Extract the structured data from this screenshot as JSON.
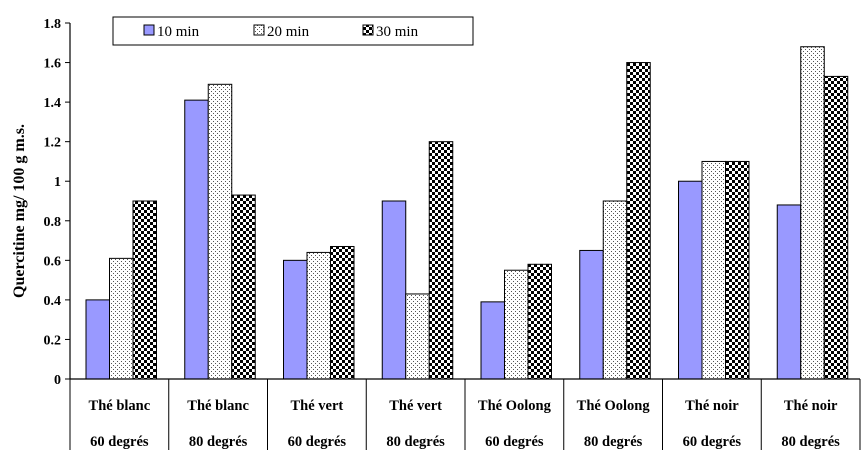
{
  "chart_data": {
    "type": "bar",
    "title": "",
    "xlabel": "",
    "ylabel": "Quercitine mg/ 100 g m.s.",
    "ylim": [
      0,
      1.8
    ],
    "yticks": [
      "0",
      "0.2",
      "0.4",
      "0.6",
      "0.8",
      "1",
      "1.2",
      "1.4",
      "1.6",
      "1.8"
    ],
    "grid": false,
    "legend_position": "top-left",
    "categories": [
      {
        "line1": "Thé blanc",
        "line2": "60 degrés"
      },
      {
        "line1": "Thé blanc",
        "line2": "80 degrés"
      },
      {
        "line1": "Thé vert",
        "line2": "60 degrés"
      },
      {
        "line1": "Thé vert",
        "line2": "80 degrés"
      },
      {
        "line1": "Thé Oolong",
        "line2": "60 degrés"
      },
      {
        "line1": "Thé Oolong",
        "line2": "80 degrés"
      },
      {
        "line1": "Thé noir",
        "line2": "60 degrés"
      },
      {
        "line1": "Thé noir",
        "line2": "80 degrés"
      }
    ],
    "series": [
      {
        "name": "10 min",
        "values": [
          0.4,
          1.41,
          0.6,
          0.9,
          0.39,
          0.65,
          1.0,
          0.88
        ],
        "color": "#9999ff",
        "pattern": "solid"
      },
      {
        "name": "20 min",
        "values": [
          0.61,
          1.49,
          0.64,
          0.43,
          0.55,
          0.9,
          1.1,
          1.68
        ],
        "color": "#ffffff",
        "pattern": "dots"
      },
      {
        "name": "30 min",
        "values": [
          0.9,
          0.93,
          0.67,
          1.2,
          0.58,
          1.6,
          1.1,
          1.53
        ],
        "color": "#000000",
        "pattern": "checker"
      }
    ]
  }
}
